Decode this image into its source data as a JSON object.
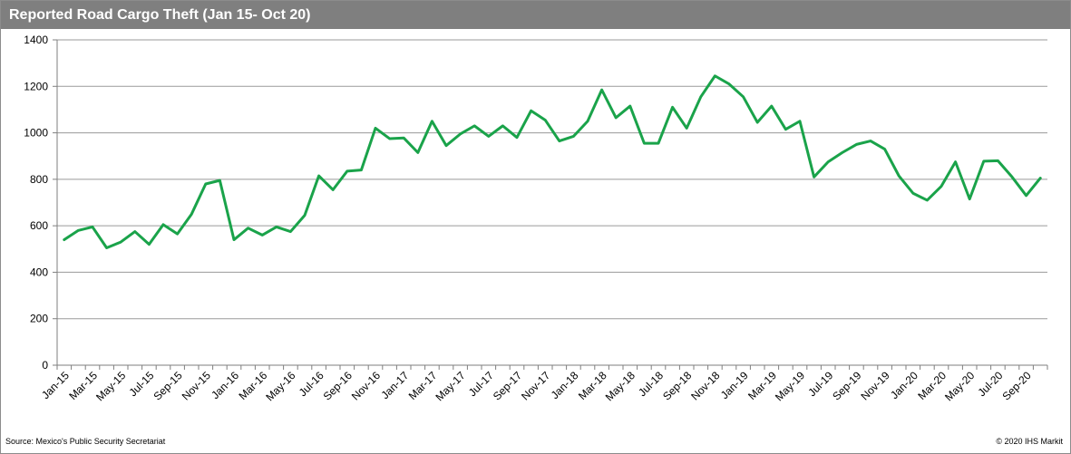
{
  "title": "Reported Road Cargo Theft (Jan 15- Oct 20)",
  "source": "Source: Mexico's Public Security Secretariat",
  "copyright": "© 2020 IHS Markit",
  "colors": {
    "line": "#1aa34a",
    "header": "#7f7f7f",
    "grid": "#9a9a9a"
  },
  "chart_data": {
    "type": "line",
    "title": "Reported Road Cargo Theft (Jan 15- Oct 20)",
    "xlabel": "",
    "ylabel": "",
    "ylim": [
      0,
      1400
    ],
    "yticks": [
      0,
      200,
      400,
      600,
      800,
      1000,
      1200,
      1400
    ],
    "grid": true,
    "legend": "none",
    "xtick_labels": [
      "Jan-15",
      "Mar-15",
      "May-15",
      "Jul-15",
      "Sep-15",
      "Nov-15",
      "Jan-16",
      "Mar-16",
      "May-16",
      "Jul-16",
      "Sep-16",
      "Nov-16",
      "Jan-17",
      "Mar-17",
      "May-17",
      "Jul-17",
      "Sep-17",
      "Nov-17",
      "Jan-18",
      "Mar-18",
      "May-18",
      "Jul-18",
      "Sep-18",
      "Nov-18",
      "Jan-19",
      "Mar-19",
      "May-19",
      "Jul-19",
      "Sep-19",
      "Nov-19",
      "Jan-20",
      "Mar-20",
      "May-20",
      "Jul-20",
      "Sep-20"
    ],
    "x": [
      "Jan-15",
      "Feb-15",
      "Mar-15",
      "Apr-15",
      "May-15",
      "Jun-15",
      "Jul-15",
      "Aug-15",
      "Sep-15",
      "Oct-15",
      "Nov-15",
      "Dec-15",
      "Jan-16",
      "Feb-16",
      "Mar-16",
      "Apr-16",
      "May-16",
      "Jun-16",
      "Jul-16",
      "Aug-16",
      "Sep-16",
      "Oct-16",
      "Nov-16",
      "Dec-16",
      "Jan-17",
      "Feb-17",
      "Mar-17",
      "Apr-17",
      "May-17",
      "Jun-17",
      "Jul-17",
      "Aug-17",
      "Sep-17",
      "Oct-17",
      "Nov-17",
      "Dec-17",
      "Jan-18",
      "Feb-18",
      "Mar-18",
      "Apr-18",
      "May-18",
      "Jun-18",
      "Jul-18",
      "Aug-18",
      "Sep-18",
      "Oct-18",
      "Nov-18",
      "Dec-18",
      "Jan-19",
      "Feb-19",
      "Mar-19",
      "Apr-19",
      "May-19",
      "Jun-19",
      "Jul-19",
      "Aug-19",
      "Sep-19",
      "Oct-19",
      "Nov-19",
      "Dec-19",
      "Jan-20",
      "Feb-20",
      "Mar-20",
      "Apr-20",
      "May-20",
      "Jun-20",
      "Jul-20",
      "Aug-20",
      "Sep-20",
      "Oct-20"
    ],
    "series": [
      {
        "values": [
          540,
          580,
          595,
          505,
          530,
          575,
          520,
          605,
          565,
          650,
          780,
          795,
          540,
          590,
          560,
          595,
          575,
          645,
          815,
          755,
          835,
          840,
          1020,
          975,
          978,
          915,
          1050,
          945,
          995,
          1030,
          985,
          1030,
          980,
          1095,
          1055,
          965,
          985,
          1050,
          1185,
          1065,
          1115,
          955,
          955,
          1110,
          1020,
          1155,
          1245,
          1210,
          1155,
          1045,
          1115,
          1015,
          1050,
          810,
          875,
          915,
          950,
          965,
          930,
          815,
          740,
          710,
          770,
          875,
          715,
          878,
          880,
          810,
          730,
          805
        ]
      }
    ]
  }
}
